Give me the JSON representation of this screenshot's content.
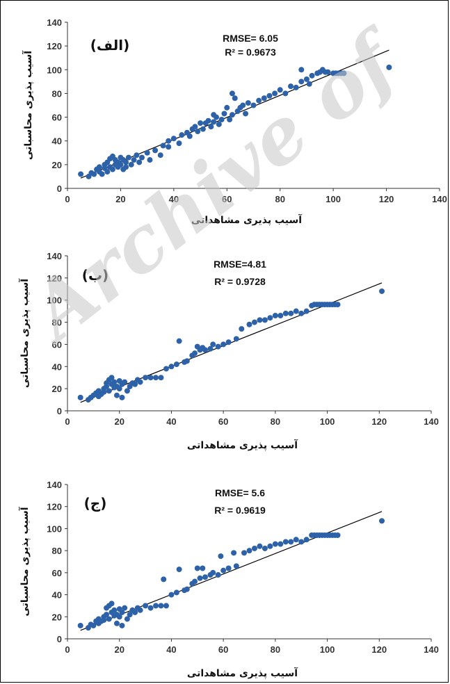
{
  "watermark": "Archive of",
  "colors": {
    "point": "#2e62a8",
    "fit_line": "#000000",
    "axis": "#333333"
  },
  "chart_data": [
    {
      "type": "scatter",
      "panel_label": "(الف)",
      "xlabel": "آسیب پذیری مشاهداتی",
      "ylabel": "آسیب پذیری محاسباتی",
      "xlim": [
        0,
        140
      ],
      "ylim": [
        0,
        140
      ],
      "xticks": [
        "0",
        "20",
        "40",
        "60",
        "80",
        "100",
        "120",
        "140"
      ],
      "yticks": [
        "0",
        "20",
        "40",
        "60",
        "80",
        "100",
        "120",
        "140"
      ],
      "rmse_label": "RMSE= 6.05",
      "r2_label": "R² = 0.9673",
      "trendline": {
        "slope": 0.93,
        "intercept": 4
      },
      "points": [
        [
          5,
          12
        ],
        [
          8,
          10
        ],
        [
          9,
          13
        ],
        [
          10,
          12
        ],
        [
          11,
          16
        ],
        [
          12,
          14
        ],
        [
          12,
          18
        ],
        [
          13,
          12
        ],
        [
          14,
          17
        ],
        [
          14,
          20
        ],
        [
          15,
          14
        ],
        [
          15,
          22
        ],
        [
          16,
          18
        ],
        [
          16,
          25
        ],
        [
          17,
          16
        ],
        [
          17,
          27
        ],
        [
          18,
          20
        ],
        [
          18,
          24
        ],
        [
          19,
          18
        ],
        [
          19,
          22
        ],
        [
          20,
          20
        ],
        [
          20,
          26
        ],
        [
          21,
          16
        ],
        [
          21,
          24
        ],
        [
          22,
          22
        ],
        [
          22,
          18
        ],
        [
          23,
          26
        ],
        [
          24,
          20
        ],
        [
          25,
          24
        ],
        [
          26,
          28
        ],
        [
          27,
          22
        ],
        [
          28,
          26
        ],
        [
          30,
          30
        ],
        [
          31,
          24
        ],
        [
          33,
          32
        ],
        [
          35,
          28
        ],
        [
          36,
          36
        ],
        [
          38,
          40
        ],
        [
          38,
          35
        ],
        [
          40,
          42
        ],
        [
          42,
          38
        ],
        [
          43,
          45
        ],
        [
          45,
          47
        ],
        [
          46,
          44
        ],
        [
          47,
          50
        ],
        [
          48,
          52
        ],
        [
          49,
          48
        ],
        [
          50,
          55
        ],
        [
          51,
          50
        ],
        [
          52,
          55
        ],
        [
          53,
          57
        ],
        [
          54,
          52
        ],
        [
          55,
          56
        ],
        [
          55,
          62
        ],
        [
          56,
          60
        ],
        [
          57,
          54
        ],
        [
          58,
          58
        ],
        [
          59,
          63
        ],
        [
          60,
          68
        ],
        [
          61,
          58
        ],
        [
          62,
          62
        ],
        [
          62,
          80
        ],
        [
          63,
          76
        ],
        [
          64,
          65
        ],
        [
          65,
          68
        ],
        [
          66,
          70
        ],
        [
          67,
          63
        ],
        [
          68,
          72
        ],
        [
          70,
          70
        ],
        [
          72,
          74
        ],
        [
          74,
          76
        ],
        [
          76,
          78
        ],
        [
          78,
          80
        ],
        [
          80,
          83
        ],
        [
          82,
          80
        ],
        [
          84,
          86
        ],
        [
          86,
          85
        ],
        [
          88,
          90
        ],
        [
          90,
          92
        ],
        [
          91,
          88
        ],
        [
          92,
          95
        ],
        [
          94,
          97
        ],
        [
          95,
          98
        ],
        [
          96,
          100
        ],
        [
          97,
          98
        ],
        [
          98,
          98
        ],
        [
          100,
          97
        ],
        [
          101,
          97
        ],
        [
          102,
          97
        ],
        [
          103,
          97
        ],
        [
          104,
          97
        ],
        [
          88,
          100
        ],
        [
          121,
          102
        ]
      ]
    },
    {
      "type": "scatter",
      "panel_label": "(ب)",
      "xlabel": "آسیب پذیری مشاهداتی",
      "ylabel": "آسیب پذیری محاسباتی",
      "xlim": [
        0,
        140
      ],
      "ylim": [
        0,
        140
      ],
      "xticks": [
        "0",
        "20",
        "40",
        "60",
        "80",
        "100",
        "120",
        "140"
      ],
      "yticks": [
        "0",
        "20",
        "40",
        "60",
        "80",
        "100",
        "120",
        "140"
      ],
      "rmse_label": "RMSE=4.81",
      "r2_label": "R² = 0.9728",
      "trendline": {
        "slope": 0.93,
        "intercept": 3
      },
      "points": [
        [
          5,
          12
        ],
        [
          8,
          10
        ],
        [
          9,
          12
        ],
        [
          10,
          14
        ],
        [
          11,
          16
        ],
        [
          12,
          13
        ],
        [
          12,
          18
        ],
        [
          13,
          15
        ],
        [
          14,
          20
        ],
        [
          14,
          17
        ],
        [
          15,
          22
        ],
        [
          15,
          25
        ],
        [
          16,
          18
        ],
        [
          16,
          28
        ],
        [
          17,
          24
        ],
        [
          17,
          30
        ],
        [
          18,
          21
        ],
        [
          18,
          26
        ],
        [
          19,
          14
        ],
        [
          19,
          22
        ],
        [
          20,
          20
        ],
        [
          20,
          27
        ],
        [
          21,
          12
        ],
        [
          21,
          24
        ],
        [
          22,
          26
        ],
        [
          23,
          18
        ],
        [
          24,
          22
        ],
        [
          25,
          25
        ],
        [
          26,
          24
        ],
        [
          27,
          28
        ],
        [
          28,
          26
        ],
        [
          30,
          30
        ],
        [
          32,
          30
        ],
        [
          34,
          30
        ],
        [
          36,
          30
        ],
        [
          38,
          38
        ],
        [
          40,
          40
        ],
        [
          42,
          42
        ],
        [
          43,
          63
        ],
        [
          45,
          44
        ],
        [
          46,
          45
        ],
        [
          48,
          50
        ],
        [
          49,
          52
        ],
        [
          50,
          58
        ],
        [
          51,
          55
        ],
        [
          52,
          57
        ],
        [
          53,
          55
        ],
        [
          55,
          56
        ],
        [
          56,
          60
        ],
        [
          58,
          58
        ],
        [
          60,
          60
        ],
        [
          62,
          62
        ],
        [
          65,
          65
        ],
        [
          67,
          74
        ],
        [
          70,
          78
        ],
        [
          72,
          80
        ],
        [
          74,
          82
        ],
        [
          76,
          82
        ],
        [
          78,
          84
        ],
        [
          80,
          86
        ],
        [
          82,
          86
        ],
        [
          84,
          88
        ],
        [
          86,
          88
        ],
        [
          88,
          90
        ],
        [
          90,
          88
        ],
        [
          92,
          90
        ],
        [
          94,
          95
        ],
        [
          95,
          96
        ],
        [
          96,
          96
        ],
        [
          97,
          96
        ],
        [
          98,
          96
        ],
        [
          99,
          96
        ],
        [
          100,
          96
        ],
        [
          101,
          96
        ],
        [
          102,
          96
        ],
        [
          103,
          96
        ],
        [
          104,
          96
        ],
        [
          121,
          108
        ]
      ]
    },
    {
      "type": "scatter",
      "panel_label": "(ج)",
      "xlabel": "آسیب پذیری مشاهداتی",
      "ylabel": "آسیب پذیری محاسباتی",
      "xlim": [
        0,
        140
      ],
      "ylim": [
        0,
        140
      ],
      "xticks": [
        "0",
        "20",
        "40",
        "60",
        "80",
        "100",
        "120",
        "140"
      ],
      "yticks": [
        "0",
        "20",
        "40",
        "60",
        "80",
        "100",
        "120",
        "140"
      ],
      "rmse_label": "RMSE= 5.6",
      "r2_label": "R² = 0.9619",
      "trendline": {
        "slope": 0.93,
        "intercept": 3
      },
      "points": [
        [
          5,
          12
        ],
        [
          8,
          10
        ],
        [
          9,
          13
        ],
        [
          10,
          12
        ],
        [
          11,
          16
        ],
        [
          12,
          14
        ],
        [
          12,
          18
        ],
        [
          13,
          16
        ],
        [
          14,
          20
        ],
        [
          14,
          17
        ],
        [
          15,
          22
        ],
        [
          15,
          28
        ],
        [
          16,
          18
        ],
        [
          16,
          30
        ],
        [
          17,
          24
        ],
        [
          17,
          32
        ],
        [
          18,
          21
        ],
        [
          18,
          26
        ],
        [
          19,
          14
        ],
        [
          19,
          22
        ],
        [
          20,
          20
        ],
        [
          20,
          27
        ],
        [
          21,
          12
        ],
        [
          21,
          24
        ],
        [
          22,
          28
        ],
        [
          23,
          18
        ],
        [
          24,
          22
        ],
        [
          25,
          26
        ],
        [
          26,
          24
        ],
        [
          27,
          28
        ],
        [
          28,
          26
        ],
        [
          30,
          30
        ],
        [
          32,
          28
        ],
        [
          34,
          30
        ],
        [
          36,
          30
        ],
        [
          37,
          54
        ],
        [
          38,
          30
        ],
        [
          40,
          40
        ],
        [
          42,
          42
        ],
        [
          43,
          63
        ],
        [
          45,
          44
        ],
        [
          46,
          45
        ],
        [
          48,
          50
        ],
        [
          49,
          52
        ],
        [
          50,
          64
        ],
        [
          51,
          55
        ],
        [
          52,
          64
        ],
        [
          53,
          56
        ],
        [
          55,
          58
        ],
        [
          56,
          60
        ],
        [
          58,
          58
        ],
        [
          59,
          75
        ],
        [
          60,
          62
        ],
        [
          62,
          64
        ],
        [
          64,
          78
        ],
        [
          65,
          66
        ],
        [
          68,
          78
        ],
        [
          70,
          80
        ],
        [
          72,
          82
        ],
        [
          74,
          84
        ],
        [
          76,
          82
        ],
        [
          78,
          84
        ],
        [
          80,
          86
        ],
        [
          82,
          86
        ],
        [
          84,
          88
        ],
        [
          86,
          88
        ],
        [
          88,
          90
        ],
        [
          90,
          88
        ],
        [
          92,
          90
        ],
        [
          94,
          94
        ],
        [
          95,
          94
        ],
        [
          96,
          94
        ],
        [
          97,
          94
        ],
        [
          98,
          94
        ],
        [
          99,
          94
        ],
        [
          100,
          94
        ],
        [
          101,
          94
        ],
        [
          102,
          94
        ],
        [
          103,
          94
        ],
        [
          104,
          94
        ],
        [
          121,
          107
        ]
      ]
    }
  ]
}
